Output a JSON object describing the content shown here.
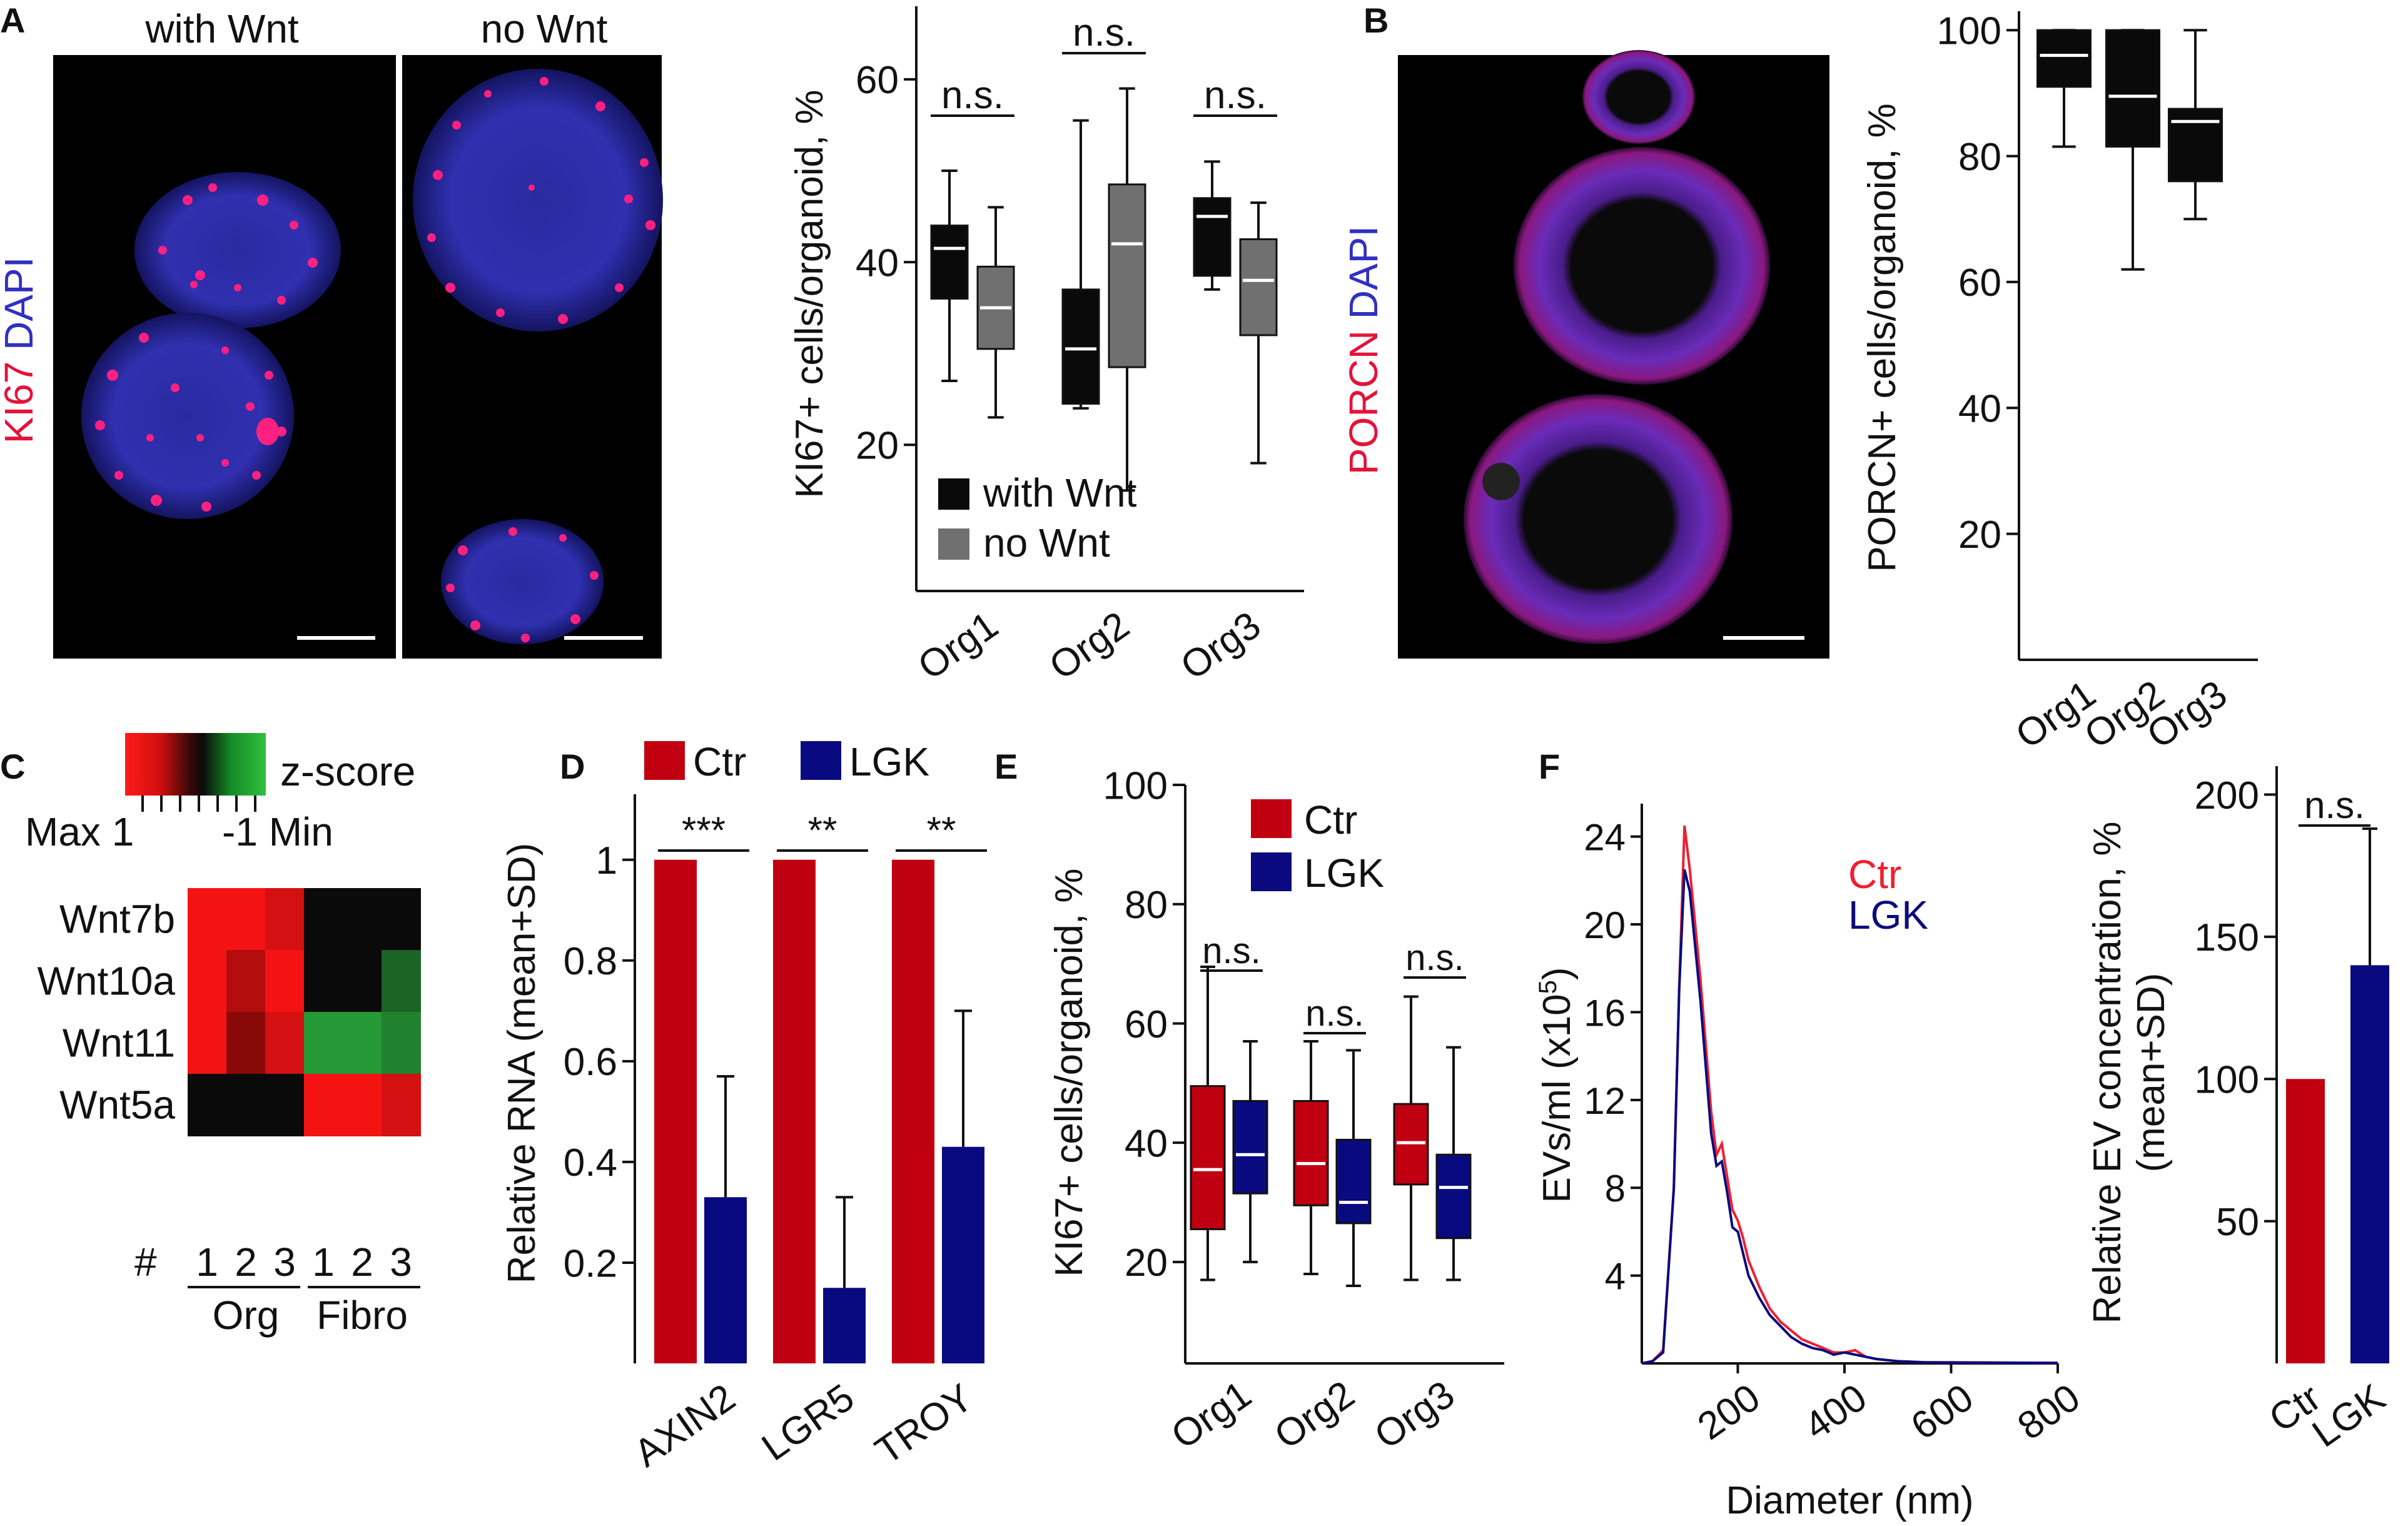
{
  "panels": {
    "A": {
      "letter": "A",
      "image_labels": {
        "left": "with Wnt",
        "right": "no Wnt"
      },
      "stain": {
        "red": "KI67",
        "blue": "DAPI"
      }
    },
    "B": {
      "letter": "B",
      "stain": {
        "red": "PORCN",
        "blue": "DAPI"
      }
    },
    "C": {
      "letter": "C",
      "scale_title": "z-score",
      "scale_left": "Max 1",
      "scale_right": "-1 Min",
      "hash": "#"
    },
    "D": {
      "letter": "D"
    },
    "E": {
      "letter": "E"
    },
    "F": {
      "letter": "F"
    }
  },
  "colors": {
    "red_dark": "#c00010",
    "navy": "#0a0a80",
    "gray_box": "#707070",
    "heat_green": "#25a035",
    "text": "#111111"
  },
  "chart_data": [
    {
      "id": "A-box",
      "type": "box",
      "ylabel": "KI67+ cells/organoid, %",
      "ylim": [
        4,
        68
      ],
      "yticks": [
        20,
        40,
        60
      ],
      "categories": [
        "Org1",
        "Org2",
        "Org3"
      ],
      "legend": [
        "with Wnt",
        "no Wnt"
      ],
      "series": [
        {
          "name": "with Wnt",
          "color": "#0a0a0a",
          "median_color": "#ffffff",
          "boxes": [
            {
              "min": 27,
              "q1": 36,
              "median": 41.5,
              "q3": 44,
              "max": 50
            },
            {
              "min": 24,
              "q1": 24.5,
              "median": 30.5,
              "q3": 37,
              "max": 55.5
            },
            {
              "min": 37,
              "q1": 38.5,
              "median": 45,
              "q3": 47,
              "max": 51
            }
          ]
        },
        {
          "name": "no Wnt",
          "color": "#707070",
          "median_color": "#ffffff",
          "boxes": [
            {
              "min": 23,
              "q1": 30.5,
              "median": 35,
              "q3": 39.5,
              "max": 46
            },
            {
              "min": 15,
              "q1": 28.5,
              "median": 42,
              "q3": 48.5,
              "max": 59
            },
            {
              "min": 18,
              "q1": 32,
              "median": 38,
              "q3": 42.5,
              "max": 46.5
            }
          ]
        }
      ],
      "annotations": [
        "n.s.",
        "n.s.",
        "n.s."
      ]
    },
    {
      "id": "B-box",
      "type": "box",
      "ylabel": "PORCN+ cells/organoid, %",
      "ylim": [
        0,
        103
      ],
      "yticks": [
        20,
        40,
        60,
        80,
        100
      ],
      "categories": [
        "Org1",
        "Org2",
        "Org3"
      ],
      "series": [
        {
          "name": "PORCN",
          "color": "#0a0a0a",
          "median_color": "#ffffff",
          "boxes": [
            {
              "min": 81.5,
              "q1": 91,
              "median": 96,
              "q3": 100,
              "max": 100
            },
            {
              "min": 62,
              "q1": 81.5,
              "median": 89.5,
              "q3": 100,
              "max": 100
            },
            {
              "min": 70,
              "q1": 76,
              "median": 85.5,
              "q3": 87.5,
              "max": 100
            }
          ]
        }
      ]
    },
    {
      "id": "C-heatmap",
      "type": "heatmap",
      "rows": [
        "Wnt7b",
        "Wnt10a",
        "Wnt11",
        "Wnt5a"
      ],
      "columns": [
        "1",
        "2",
        "3",
        "1",
        "2",
        "3"
      ],
      "groups": [
        "Org",
        "Fibro"
      ],
      "zlim": [
        -1,
        1
      ],
      "values": [
        [
          0.95,
          0.95,
          0.8,
          0.0,
          0.0,
          0.0
        ],
        [
          0.95,
          0.65,
          0.95,
          0.0,
          0.0,
          -0.6
        ],
        [
          0.95,
          0.45,
          0.8,
          -0.95,
          -0.95,
          -0.8
        ],
        [
          0.0,
          0.0,
          0.0,
          0.95,
          0.95,
          0.8
        ]
      ]
    },
    {
      "id": "D-bar",
      "type": "bar",
      "ylabel": "Relative RNA (mean+SD)",
      "ylim": [
        0,
        1.13
      ],
      "yticks": [
        0.2,
        0.4,
        0.6,
        0.8,
        1
      ],
      "categories": [
        "AXIN2",
        "LGR5",
        "TROY"
      ],
      "legend": [
        "Ctr",
        "LGK"
      ],
      "series": [
        {
          "name": "Ctr",
          "color": "#c00010",
          "values": [
            1,
            1,
            1
          ],
          "sd": [
            0,
            0,
            0
          ]
        },
        {
          "name": "LGK",
          "color": "#0a0a80",
          "values": [
            0.33,
            0.15,
            0.43
          ],
          "sd": [
            0.24,
            0.18,
            0.27
          ]
        }
      ],
      "annotations": [
        "***",
        "**",
        "**"
      ]
    },
    {
      "id": "E-box",
      "type": "box",
      "ylabel": "KI67+ cells/organoid, %",
      "ylim": [
        3,
        100
      ],
      "yticks": [
        20,
        40,
        60,
        80,
        100
      ],
      "categories": [
        "Org1",
        "Org2",
        "Org3"
      ],
      "legend": [
        "Ctr",
        "LGK"
      ],
      "series": [
        {
          "name": "Ctr",
          "color": "#c00010",
          "median_color": "#ffffff",
          "boxes": [
            {
              "min": 17,
              "q1": 25.5,
              "median": 35.5,
              "q3": 49.5,
              "max": 69.5
            },
            {
              "min": 18,
              "q1": 29.5,
              "median": 36.5,
              "q3": 47,
              "max": 57
            },
            {
              "min": 17,
              "q1": 33,
              "median": 40,
              "q3": 46.5,
              "max": 64.5
            }
          ]
        },
        {
          "name": "LGK",
          "color": "#0a0a80",
          "median_color": "#ffffff",
          "boxes": [
            {
              "min": 20,
              "q1": 31.5,
              "median": 38,
              "q3": 47,
              "max": 57
            },
            {
              "min": 16,
              "q1": 26.5,
              "median": 30,
              "q3": 40.5,
              "max": 55.5
            },
            {
              "min": 17,
              "q1": 24,
              "median": 32.5,
              "q3": 38,
              "max": 56
            }
          ]
        }
      ],
      "annotations": [
        "n.s.",
        "n.s.",
        "n.s."
      ]
    },
    {
      "id": "F-line",
      "type": "line",
      "xlabel": "Diameter (nm)",
      "ylabel": "EVs/ml (x10",
      "ylabel_sup": "5",
      "ylabel_tail": ")",
      "xlim": [
        20,
        800
      ],
      "ylim": [
        0,
        25.5
      ],
      "xticks": [
        200,
        400,
        600,
        800
      ],
      "yticks": [
        4,
        8,
        12,
        16,
        20,
        24
      ],
      "legend": [
        "Ctr",
        "LGK"
      ],
      "series": [
        {
          "name": "Ctr",
          "color": "#ee2030",
          "x": [
            20,
            40,
            60,
            80,
            90,
            100,
            110,
            120,
            130,
            140,
            150,
            160,
            170,
            180,
            190,
            200,
            210,
            220,
            240,
            260,
            280,
            300,
            320,
            340,
            360,
            380,
            400,
            420,
            440,
            460,
            480,
            500,
            550,
            600,
            700,
            800
          ],
          "y": [
            0,
            0.1,
            0.6,
            8,
            17,
            24.5,
            22.5,
            20,
            17.5,
            14.5,
            11.5,
            9.5,
            10,
            8.5,
            7,
            6.5,
            5.7,
            4.7,
            3.5,
            2.5,
            1.9,
            1.5,
            1.1,
            0.9,
            0.7,
            0.5,
            0.5,
            0.6,
            0.3,
            0.2,
            0.15,
            0.1,
            0.05,
            0.05,
            0.03,
            0.02
          ]
        },
        {
          "name": "LGK",
          "color": "#0a0a80",
          "x": [
            20,
            40,
            60,
            80,
            90,
            100,
            110,
            120,
            130,
            140,
            150,
            160,
            170,
            180,
            190,
            200,
            210,
            220,
            240,
            260,
            280,
            300,
            320,
            340,
            360,
            380,
            400,
            420,
            440,
            460,
            480,
            500,
            550,
            600,
            700,
            800
          ],
          "y": [
            0,
            0.1,
            0.5,
            8,
            17,
            22.5,
            21.5,
            19,
            16.5,
            13.5,
            10.5,
            9,
            9.2,
            7.8,
            6.2,
            6,
            5,
            4,
            3,
            2.2,
            1.7,
            1.2,
            0.9,
            0.7,
            0.6,
            0.4,
            0.5,
            0.4,
            0.3,
            0.2,
            0.15,
            0.1,
            0.05,
            0.04,
            0.03,
            0.02
          ]
        }
      ]
    },
    {
      "id": "F-bar",
      "type": "bar",
      "ylabel": "Relative EV concentration, %",
      "ylabel2": "(mean+SD)",
      "ylim": [
        0,
        210
      ],
      "yticks": [
        50,
        100,
        150,
        200
      ],
      "categories": [
        "Ctr",
        "LGK"
      ],
      "series": [
        {
          "name": "Ctr",
          "color": "#c00010",
          "values": [
            100,
            null
          ],
          "sd": [
            0,
            null
          ]
        },
        {
          "name": "LGK",
          "color": "#0a0a80",
          "values": [
            null,
            140
          ],
          "sd": [
            null,
            48
          ]
        }
      ],
      "annotations": [
        "n.s."
      ]
    }
  ]
}
